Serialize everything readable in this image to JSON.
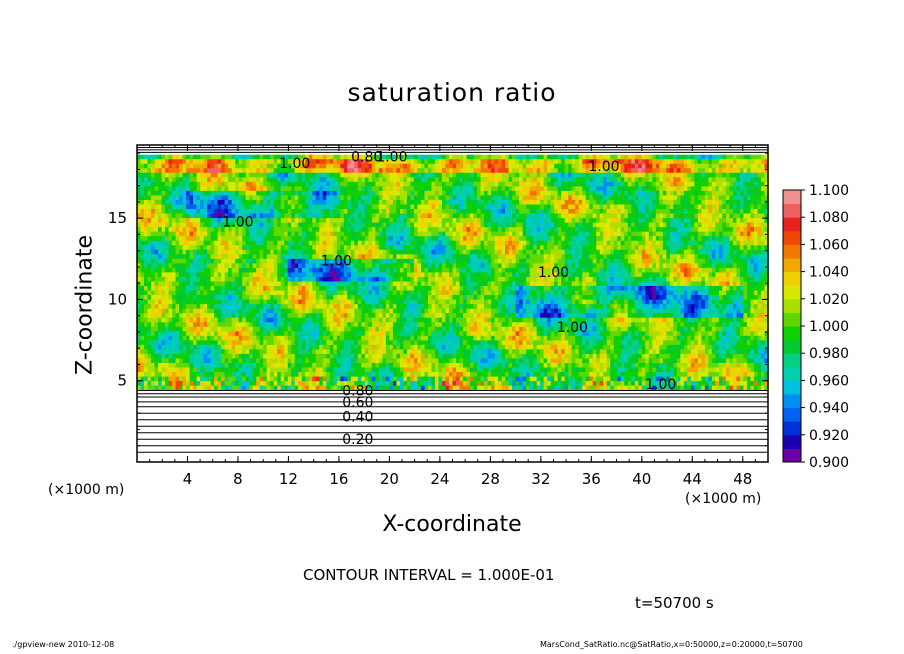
{
  "chart_data": {
    "type": "heatmap",
    "title": "saturation ratio",
    "xlabel": "X-coordinate",
    "ylabel": "Z-coordinate",
    "x_unit": "(×1000 m)",
    "z_unit": "(×1000 m)",
    "xlim": [
      0,
      50
    ],
    "zlim": [
      0,
      19.5
    ],
    "x_ticks": [
      4,
      8,
      12,
      16,
      20,
      24,
      28,
      32,
      36,
      40,
      44,
      48
    ],
    "z_ticks": [
      5,
      10,
      15
    ],
    "contour_interval_text": "CONTOUR INTERVAL = 1.000E-01",
    "time_text": "t=50700 s",
    "contour_labels": [
      {
        "text": "0.80",
        "x": 18.2,
        "z": 18.8
      },
      {
        "text": "1.00",
        "x": 20.2,
        "z": 18.8
      },
      {
        "text": "1.00",
        "x": 12.5,
        "z": 18.4
      },
      {
        "text": "1.00",
        "x": 37.0,
        "z": 18.2
      },
      {
        "text": "1.00",
        "x": 8.0,
        "z": 14.8
      },
      {
        "text": "1.00",
        "x": 15.8,
        "z": 12.4
      },
      {
        "text": "1.00",
        "x": 33.0,
        "z": 11.7
      },
      {
        "text": "1.00",
        "x": 34.5,
        "z": 8.3
      },
      {
        "text": "1.00",
        "x": 41.5,
        "z": 4.8
      },
      {
        "text": "0.80",
        "x": 17.5,
        "z": 4.4
      },
      {
        "text": "0.60",
        "x": 17.5,
        "z": 3.7
      },
      {
        "text": "0.40",
        "x": 17.5,
        "z": 2.8
      },
      {
        "text": "0.20",
        "x": 17.5,
        "z": 1.4
      }
    ],
    "colorbar": {
      "min": 0.9,
      "max": 1.1,
      "step": 0.01,
      "labels": [
        "1.100",
        "1.080",
        "1.060",
        "1.040",
        "1.020",
        "1.000",
        "0.980",
        "0.960",
        "0.940",
        "0.920",
        "0.900"
      ],
      "colors": [
        "#6a00a8",
        "#1c00b0",
        "#0030d8",
        "#0060f0",
        "#0090f0",
        "#00c0e0",
        "#00d0b0",
        "#00d080",
        "#00c830",
        "#10d000",
        "#60d800",
        "#a8e000",
        "#d8e800",
        "#f0d000",
        "#f0a800",
        "#f07800",
        "#f04800",
        "#e82020",
        "#f06060",
        "#f09090"
      ]
    },
    "field_description_regions": [
      {
        "zone": "z 0-4.5",
        "value_range": "0.0-0.8",
        "shown_as": "white with contours"
      },
      {
        "zone": "z 4.5-19",
        "value_range": "0.93-1.08",
        "shown_as": "color fill"
      },
      {
        "zone": "z 19-19.5",
        "value_range": "0.8-1.0",
        "shown_as": "white with contours"
      }
    ]
  },
  "footer": {
    "left": "./gpview-new   2010-12-08",
    "right": "MarsCond_SatRatio.nc@SatRatio,x=0:50000,z=0:20000,t=50700"
  }
}
